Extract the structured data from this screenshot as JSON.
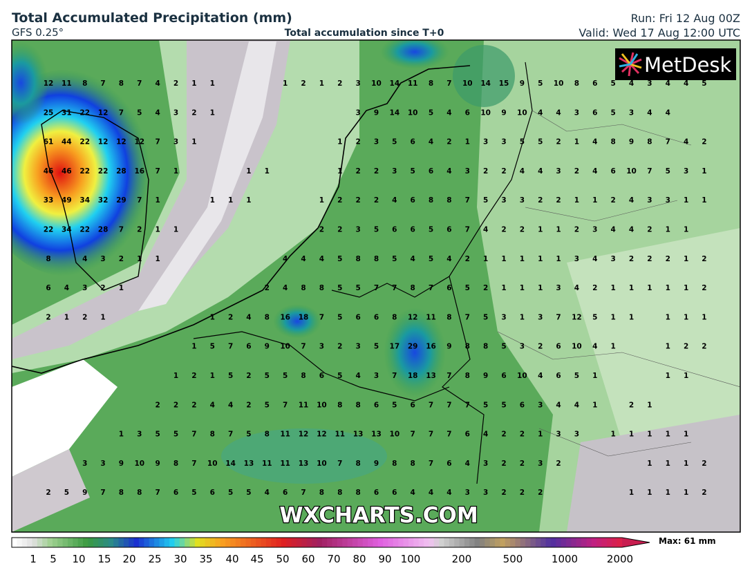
{
  "header": {
    "title": "Total Accumulated Precipitation (mm)",
    "model": "GFS 0.25°",
    "subtitle": "Total accumulation since T+0",
    "run": "Run: Fri 12 Aug 00Z",
    "valid": "Valid: Wed 17 Aug 12:00 UTC"
  },
  "logo": "MetDesk",
  "watermark": "WXCHARTS.COM",
  "grid": {
    "rows": [
      [
        12,
        11,
        8,
        7,
        8,
        7,
        4,
        2,
        1,
        1,
        null,
        null,
        null,
        1,
        2,
        1,
        2,
        3,
        10,
        14,
        11,
        8,
        7,
        10,
        14,
        15,
        9,
        5,
        10,
        8,
        6,
        5,
        4,
        3,
        4,
        4,
        5
      ],
      [
        25,
        31,
        22,
        12,
        7,
        5,
        4,
        3,
        2,
        1,
        null,
        null,
        null,
        null,
        null,
        null,
        null,
        3,
        9,
        14,
        10,
        5,
        4,
        6,
        10,
        9,
        10,
        4,
        4,
        3,
        6,
        5,
        3,
        4,
        4,
        null,
        null
      ],
      [
        61,
        44,
        22,
        12,
        12,
        12,
        7,
        3,
        1,
        null,
        null,
        null,
        null,
        null,
        null,
        null,
        1,
        2,
        3,
        5,
        6,
        4,
        2,
        1,
        3,
        3,
        5,
        5,
        2,
        1,
        4,
        8,
        9,
        8,
        7,
        4,
        2
      ],
      [
        46,
        46,
        22,
        22,
        28,
        16,
        7,
        1,
        null,
        null,
        null,
        1,
        1,
        null,
        null,
        null,
        1,
        2,
        2,
        3,
        5,
        6,
        4,
        3,
        2,
        2,
        4,
        4,
        3,
        2,
        4,
        6,
        10,
        7,
        5,
        3,
        1
      ],
      [
        33,
        49,
        34,
        32,
        29,
        7,
        1,
        null,
        null,
        1,
        1,
        1,
        null,
        null,
        null,
        1,
        2,
        2,
        2,
        4,
        6,
        8,
        8,
        7,
        5,
        3,
        3,
        2,
        2,
        1,
        1,
        2,
        4,
        3,
        3,
        1,
        1
      ],
      [
        22,
        34,
        22,
        28,
        7,
        2,
        1,
        1,
        null,
        null,
        null,
        null,
        null,
        null,
        null,
        2,
        2,
        3,
        5,
        6,
        6,
        5,
        6,
        7,
        4,
        2,
        2,
        1,
        1,
        2,
        3,
        4,
        4,
        2,
        1,
        1,
        null
      ],
      [
        8,
        null,
        4,
        3,
        2,
        1,
        1,
        null,
        null,
        null,
        null,
        null,
        null,
        4,
        4,
        4,
        5,
        8,
        8,
        5,
        4,
        5,
        4,
        2,
        1,
        1,
        1,
        1,
        1,
        3,
        4,
        3,
        2,
        2,
        2,
        1,
        2
      ],
      [
        6,
        4,
        3,
        2,
        1,
        null,
        null,
        null,
        null,
        null,
        null,
        null,
        2,
        4,
        8,
        8,
        5,
        5,
        7,
        7,
        8,
        7,
        6,
        5,
        2,
        1,
        1,
        1,
        3,
        4,
        2,
        1,
        1,
        1,
        1,
        1,
        2
      ],
      [
        2,
        1,
        2,
        1,
        null,
        null,
        null,
        null,
        null,
        1,
        2,
        4,
        8,
        16,
        18,
        7,
        5,
        6,
        6,
        8,
        12,
        11,
        8,
        7,
        5,
        3,
        1,
        3,
        7,
        12,
        5,
        1,
        1,
        null,
        1,
        1,
        1
      ],
      [
        null,
        null,
        null,
        null,
        null,
        null,
        null,
        null,
        1,
        5,
        7,
        6,
        9,
        10,
        7,
        3,
        2,
        3,
        5,
        17,
        29,
        16,
        9,
        8,
        8,
        5,
        3,
        2,
        6,
        10,
        4,
        1,
        null,
        null,
        1,
        2,
        2
      ],
      [
        null,
        null,
        null,
        null,
        null,
        null,
        null,
        1,
        2,
        1,
        5,
        2,
        5,
        5,
        8,
        6,
        5,
        4,
        3,
        7,
        18,
        13,
        7,
        8,
        9,
        6,
        10,
        4,
        6,
        5,
        1,
        null,
        null,
        null,
        1,
        1,
        null
      ],
      [
        null,
        null,
        null,
        null,
        null,
        null,
        2,
        2,
        2,
        4,
        4,
        2,
        5,
        7,
        11,
        10,
        8,
        8,
        6,
        5,
        6,
        7,
        7,
        7,
        5,
        5,
        6,
        3,
        4,
        4,
        1,
        null,
        2,
        1,
        null,
        null,
        null
      ],
      [
        null,
        null,
        null,
        null,
        1,
        3,
        5,
        5,
        7,
        8,
        7,
        5,
        8,
        11,
        12,
        12,
        11,
        13,
        13,
        10,
        7,
        7,
        7,
        6,
        4,
        2,
        2,
        1,
        3,
        3,
        null,
        1,
        1,
        1,
        1,
        1,
        null
      ],
      [
        null,
        null,
        3,
        3,
        9,
        10,
        9,
        8,
        7,
        10,
        14,
        13,
        11,
        11,
        13,
        10,
        7,
        8,
        9,
        8,
        8,
        7,
        6,
        4,
        3,
        2,
        2,
        3,
        2,
        null,
        null,
        null,
        null,
        1,
        1,
        1,
        2
      ],
      [
        2,
        5,
        9,
        7,
        8,
        8,
        7,
        6,
        5,
        6,
        5,
        5,
        4,
        6,
        7,
        8,
        8,
        8,
        6,
        6,
        4,
        4,
        4,
        3,
        3,
        2,
        2,
        2,
        null,
        null,
        null,
        null,
        1,
        1,
        1,
        1,
        2
      ]
    ]
  },
  "legend": {
    "labels": [
      1,
      5,
      10,
      15,
      20,
      25,
      30,
      35,
      40,
      45,
      50,
      60,
      70,
      80,
      90,
      100,
      200,
      500,
      1000,
      2000
    ],
    "max": "Max: 61 mm"
  }
}
